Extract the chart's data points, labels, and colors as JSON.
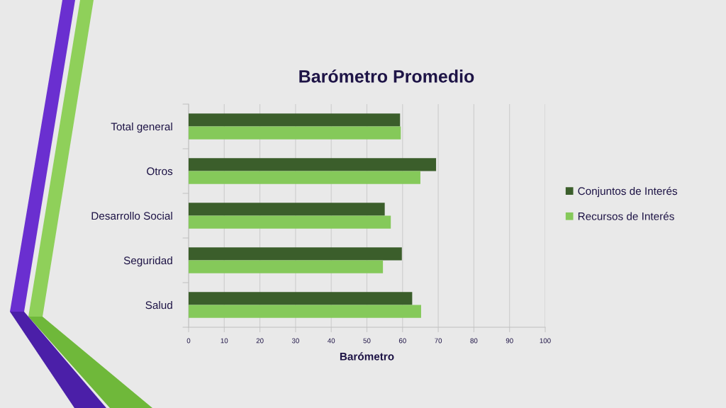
{
  "chart_data": {
    "type": "bar",
    "orientation": "horizontal",
    "title": "Barómetro Promedio",
    "xlabel": "Barómetro",
    "categories": [
      "Total general",
      "Otros",
      "Desarrollo Social",
      "Seguridad",
      "Salud"
    ],
    "series": [
      {
        "name": "Conjuntos de Interés",
        "color": "#3b5e2b",
        "values": [
          59.3,
          69.4,
          55.0,
          59.8,
          62.7
        ]
      },
      {
        "name": "Recursos de Interés",
        "color": "#85c95a",
        "values": [
          59.5,
          65.0,
          56.7,
          54.5,
          65.2
        ]
      }
    ],
    "xlim": [
      0,
      100
    ],
    "xticks": [
      0,
      10,
      20,
      30,
      40,
      50,
      60,
      70,
      80,
      90,
      100
    ],
    "grid": "x",
    "legend": "right"
  }
}
